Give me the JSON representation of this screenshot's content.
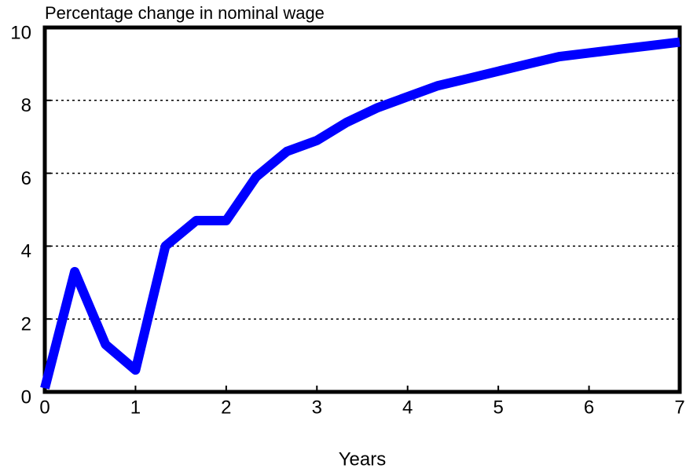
{
  "chart_data": {
    "type": "line",
    "title": "Percentage change in nominal wage",
    "xlabel": "Years",
    "x": [
      0,
      0.33,
      0.67,
      1,
      1.33,
      1.67,
      2,
      2.33,
      2.67,
      3,
      3.33,
      3.67,
      4,
      4.33,
      4.67,
      5,
      5.33,
      5.67,
      6,
      6.33,
      6.67,
      7
    ],
    "series": [
      {
        "name": "Nominal wage",
        "color": "#0000ff",
        "values": [
          0.1,
          3.3,
          1.3,
          0.6,
          4.0,
          4.7,
          4.7,
          5.9,
          6.6,
          6.9,
          7.4,
          7.8,
          8.1,
          8.4,
          8.6,
          8.8,
          9.0,
          9.2,
          9.3,
          9.4,
          9.5,
          9.6
        ]
      }
    ],
    "xlim": [
      0,
      7
    ],
    "xticks": [
      0,
      1,
      2,
      3,
      4,
      5,
      6,
      7
    ],
    "ylim": [
      0,
      10
    ],
    "yticks": [
      0,
      2,
      4,
      6,
      8,
      10
    ],
    "grid": true
  }
}
